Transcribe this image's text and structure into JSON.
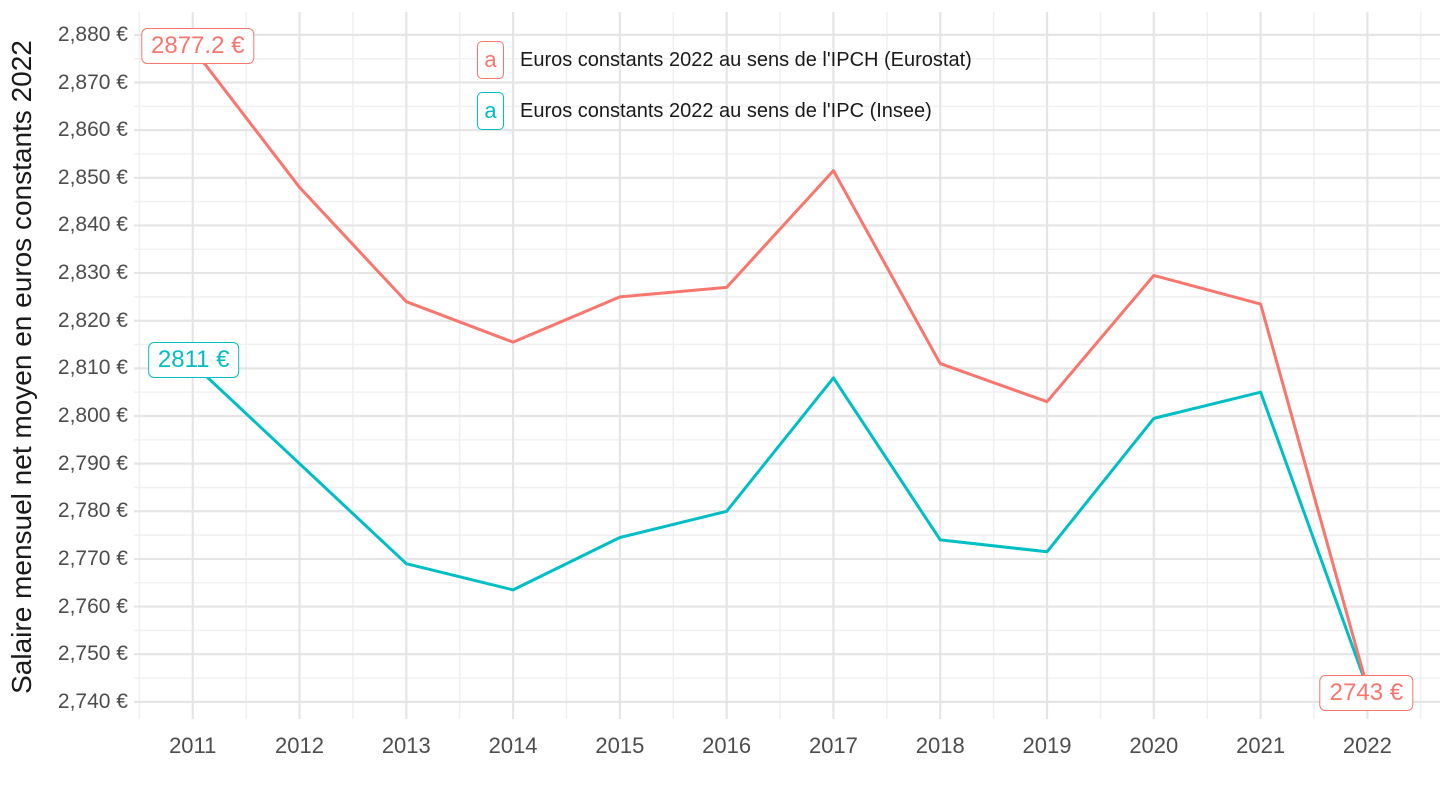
{
  "chart_data": {
    "type": "line",
    "title": "",
    "xlabel": "",
    "ylabel": "Salaire mensuel net moyen en euros constants 2022",
    "x": [
      2011,
      2012,
      2013,
      2014,
      2015,
      2016,
      2017,
      2018,
      2019,
      2020,
      2021,
      2022
    ],
    "x_tick_labels": [
      "2011",
      "2012",
      "2013",
      "2014",
      "2015",
      "2016",
      "2017",
      "2018",
      "2019",
      "2020",
      "2021",
      "2022"
    ],
    "y_tick_values": [
      2740,
      2750,
      2760,
      2770,
      2780,
      2790,
      2800,
      2810,
      2820,
      2830,
      2840,
      2850,
      2860,
      2870,
      2880
    ],
    "y_tick_labels": [
      "2,740 €",
      "2,750 €",
      "2,760 €",
      "2,770 €",
      "2,780 €",
      "2,790 €",
      "2,800 €",
      "2,810 €",
      "2,820 €",
      "2,830 €",
      "2,840 €",
      "2,850 €",
      "2,860 €",
      "2,870 €",
      "2,880 €"
    ],
    "xlim": [
      2010.45,
      2022.68
    ],
    "ylim": [
      2736.4,
      2884.8
    ],
    "grid": "major+minor",
    "legend_position": "top-inside",
    "legend_key_label": "a",
    "series": [
      {
        "name": "Euros constants 2022 au sens de l'IPCH (Eurostat)",
        "color": "#F8766D",
        "values": [
          2877.2,
          2848,
          2824,
          2815.5,
          2825,
          2827,
          2851.5,
          2811,
          2803,
          2829.5,
          2823.5,
          2743
        ]
      },
      {
        "name": "Euros constants 2022 au sens de l'IPC (Insee)",
        "color": "#00BFC4",
        "values": [
          2811,
          2790,
          2769,
          2763.5,
          2774.5,
          2780,
          2808,
          2774,
          2771.5,
          2799.5,
          2805,
          2743
        ]
      }
    ],
    "annotations": [
      {
        "text": "2877.2 €",
        "series": 0,
        "x": 2011,
        "value": 2877.2,
        "color": "#F8766D"
      },
      {
        "text": "2811 €",
        "series": 1,
        "x": 2011,
        "value": 2811,
        "color": "#00BFC4"
      },
      {
        "text": "2743 €",
        "series": 0,
        "x": 2022,
        "value": 2743,
        "color": "#F8766D"
      }
    ]
  },
  "colors": {
    "background": "#FFFFFF",
    "grid_major": "#E5E5E5",
    "grid_minor": "#F0F0F0",
    "axis_text": "#4D4D4D",
    "title_text": "#1A1A1A",
    "series_ipch": "#F8766D",
    "series_ipc": "#00BFC4"
  }
}
